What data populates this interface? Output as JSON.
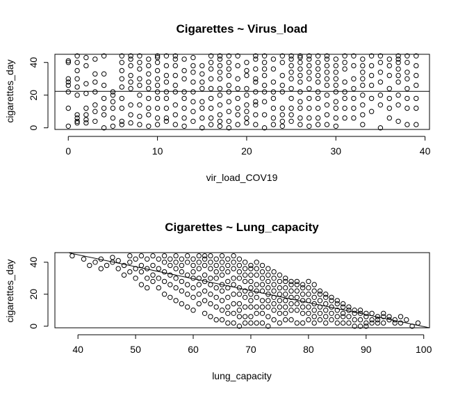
{
  "chart_data": [
    {
      "type": "scatter",
      "title": "Cigarettes ~ Virus_load",
      "xlabel": "vir_load_COV19",
      "ylabel": "cigarettes_day",
      "xlim": [
        -1.5,
        40.5
      ],
      "ylim": [
        -1,
        45
      ],
      "xticks": [
        0,
        10,
        20,
        30,
        40
      ],
      "yticks": [
        0,
        20,
        40
      ],
      "grid": false,
      "legend": "none",
      "fit_line": {
        "x1": -1.5,
        "y1": 22.3,
        "x2": 40.5,
        "y2": 22.3
      },
      "x": [
        0,
        0,
        0,
        0,
        0,
        0,
        0,
        0,
        1,
        1,
        1,
        1,
        1,
        1,
        1,
        1,
        1,
        1,
        2,
        2,
        2,
        2,
        2,
        2,
        2,
        2,
        3,
        3,
        3,
        3,
        3,
        3,
        3,
        4,
        4,
        4,
        4,
        4,
        4,
        4,
        5,
        5,
        5,
        5,
        5,
        5,
        6,
        6,
        6,
        6,
        6,
        6,
        6,
        6,
        6,
        7,
        7,
        7,
        7,
        7,
        7,
        7,
        7,
        7,
        8,
        8,
        8,
        8,
        8,
        8,
        8,
        8,
        8,
        9,
        9,
        9,
        9,
        9,
        9,
        9,
        9,
        9,
        10,
        10,
        10,
        10,
        10,
        10,
        10,
        10,
        10,
        10,
        10,
        11,
        11,
        11,
        11,
        11,
        11,
        11,
        11,
        11,
        12,
        12,
        12,
        12,
        12,
        12,
        12,
        12,
        12,
        13,
        13,
        13,
        13,
        13,
        13,
        13,
        13,
        14,
        14,
        14,
        14,
        14,
        14,
        14,
        14,
        15,
        15,
        15,
        15,
        15,
        15,
        15,
        15,
        16,
        16,
        16,
        16,
        16,
        16,
        16,
        16,
        16,
        17,
        17,
        17,
        17,
        17,
        17,
        17,
        17,
        17,
        17,
        17,
        18,
        18,
        18,
        18,
        18,
        18,
        18,
        18,
        18,
        18,
        19,
        19,
        19,
        19,
        19,
        19,
        19,
        19,
        20,
        20,
        20,
        20,
        20,
        20,
        20,
        20,
        20,
        21,
        21,
        21,
        21,
        21,
        21,
        21,
        21,
        21,
        21,
        22,
        22,
        22,
        22,
        22,
        22,
        22,
        22,
        22,
        23,
        23,
        23,
        23,
        23,
        23,
        23,
        23,
        24,
        24,
        24,
        24,
        24,
        24,
        24,
        24,
        24,
        25,
        25,
        25,
        25,
        25,
        25,
        25,
        25,
        25,
        25,
        26,
        26,
        26,
        26,
        26,
        26,
        26,
        26,
        26,
        26,
        26,
        27,
        27,
        27,
        27,
        27,
        27,
        27,
        27,
        27,
        27,
        28,
        28,
        28,
        28,
        28,
        28,
        28,
        28,
        28,
        28,
        29,
        29,
        29,
        29,
        29,
        29,
        29,
        29,
        29,
        29,
        30,
        30,
        30,
        30,
        30,
        30,
        30,
        30,
        30,
        30,
        31,
        31,
        31,
        31,
        31,
        31,
        31,
        31,
        32,
        32,
        32,
        32,
        32,
        32,
        32,
        33,
        33,
        33,
        33,
        33,
        33,
        33,
        33,
        33,
        34,
        34,
        34,
        34,
        34,
        34,
        35,
        35,
        35,
        35,
        35,
        35,
        35,
        36,
        36,
        36,
        36,
        36,
        36,
        36,
        37,
        37,
        37,
        37,
        37,
        37,
        37,
        37,
        37,
        38,
        38,
        38,
        38,
        38,
        38,
        38,
        38,
        39,
        39,
        39,
        39,
        39,
        39,
        39
      ],
      "y": [
        41,
        40,
        30,
        28,
        26,
        22,
        12,
        1,
        44,
        40,
        35,
        30,
        25,
        20,
        8,
        6,
        4,
        3,
        43,
        38,
        27,
        21,
        12,
        8,
        5,
        3,
        42,
        33,
        28,
        22,
        14,
        10,
        4,
        44,
        33,
        26,
        18,
        12,
        8,
        0,
        22,
        20,
        16,
        12,
        6,
        1,
        44,
        40,
        35,
        30,
        25,
        18,
        12,
        4,
        2,
        44,
        42,
        38,
        32,
        28,
        24,
        14,
        8,
        3,
        44,
        40,
        36,
        30,
        26,
        20,
        14,
        7,
        2,
        42,
        38,
        33,
        28,
        24,
        18,
        12,
        8,
        1,
        44,
        43,
        40,
        35,
        30,
        26,
        22,
        18,
        12,
        6,
        2,
        44,
        38,
        32,
        28,
        22,
        18,
        12,
        6,
        4,
        44,
        42,
        38,
        32,
        26,
        22,
        14,
        8,
        2,
        42,
        35,
        30,
        22,
        18,
        12,
        6,
        1,
        43,
        38,
        34,
        28,
        22,
        16,
        10,
        4,
        38,
        33,
        28,
        24,
        16,
        12,
        6,
        0,
        44,
        40,
        36,
        30,
        24,
        18,
        12,
        6,
        2,
        44,
        42,
        38,
        34,
        30,
        24,
        20,
        14,
        8,
        4,
        1,
        44,
        40,
        36,
        32,
        26,
        22,
        16,
        10,
        4,
        0,
        44,
        38,
        30,
        24,
        18,
        12,
        8,
        2,
        40,
        35,
        32,
        24,
        20,
        14,
        10,
        6,
        3,
        44,
        42,
        36,
        30,
        28,
        22,
        16,
        14,
        8,
        2,
        44,
        40,
        36,
        32,
        26,
        22,
        16,
        8,
        0,
        42,
        36,
        28,
        22,
        18,
        12,
        6,
        2,
        44,
        40,
        32,
        26,
        22,
        12,
        8,
        4,
        1,
        44,
        42,
        38,
        34,
        30,
        24,
        18,
        12,
        8,
        4,
        44,
        43,
        40,
        36,
        32,
        28,
        22,
        16,
        12,
        6,
        2,
        44,
        42,
        38,
        34,
        30,
        24,
        18,
        12,
        6,
        1,
        44,
        40,
        36,
        32,
        28,
        22,
        18,
        12,
        6,
        2,
        44,
        42,
        38,
        34,
        30,
        26,
        20,
        14,
        8,
        2,
        42,
        38,
        34,
        30,
        26,
        22,
        16,
        12,
        6,
        1,
        44,
        40,
        36,
        28,
        22,
        18,
        12,
        6,
        44,
        38,
        30,
        24,
        18,
        12,
        6,
        42,
        38,
        34,
        30,
        26,
        20,
        14,
        8,
        2,
        44,
        38,
        32,
        26,
        18,
        10,
        44,
        40,
        34,
        28,
        20,
        14,
        0,
        42,
        38,
        32,
        24,
        18,
        12,
        6,
        44,
        42,
        40,
        36,
        32,
        28,
        20,
        14,
        4,
        44,
        40,
        34,
        30,
        24,
        18,
        12,
        2,
        44,
        38,
        32,
        26,
        18,
        12,
        2
      ]
    },
    {
      "type": "scatter",
      "title": "Cigarettes ~ Lung_capacity",
      "xlabel": "lung_capacity",
      "ylabel": "cigarettes_day",
      "xlim": [
        36,
        101
      ],
      "ylim": [
        -1,
        46
      ],
      "xticks": [
        40,
        50,
        60,
        70,
        80,
        90,
        100
      ],
      "yticks": [
        0,
        20,
        40
      ],
      "grid": false,
      "legend": "none",
      "fit_line": {
        "x1": 38.5,
        "y1": 45.8,
        "x2": 101,
        "y2": -1
      },
      "x": [
        39,
        41,
        42,
        43,
        44,
        44,
        45,
        46,
        46,
        47,
        47,
        48,
        48,
        49,
        49,
        49,
        50,
        50,
        50,
        51,
        51,
        51,
        51,
        52,
        52,
        52,
        52,
        53,
        53,
        53,
        53,
        54,
        54,
        54,
        54,
        55,
        55,
        55,
        55,
        55,
        56,
        56,
        56,
        56,
        56,
        57,
        57,
        57,
        57,
        57,
        57,
        58,
        58,
        58,
        58,
        58,
        58,
        59,
        59,
        59,
        59,
        59,
        59,
        60,
        60,
        60,
        60,
        60,
        60,
        60,
        61,
        61,
        61,
        61,
        61,
        61,
        61,
        62,
        62,
        62,
        62,
        62,
        62,
        62,
        62,
        63,
        63,
        63,
        63,
        63,
        63,
        63,
        63,
        64,
        64,
        64,
        64,
        64,
        64,
        64,
        64,
        65,
        65,
        65,
        65,
        65,
        65,
        65,
        65,
        65,
        66,
        66,
        66,
        66,
        66,
        66,
        66,
        66,
        66,
        67,
        67,
        67,
        67,
        67,
        67,
        67,
        67,
        67,
        68,
        68,
        68,
        68,
        68,
        68,
        68,
        68,
        68,
        68,
        69,
        69,
        69,
        69,
        69,
        69,
        69,
        69,
        69,
        70,
        70,
        70,
        70,
        70,
        70,
        70,
        70,
        70,
        70,
        71,
        71,
        71,
        71,
        71,
        71,
        71,
        71,
        71,
        72,
        72,
        72,
        72,
        72,
        72,
        72,
        72,
        72,
        73,
        73,
        73,
        73,
        73,
        73,
        73,
        73,
        73,
        74,
        74,
        74,
        74,
        74,
        74,
        74,
        74,
        75,
        75,
        75,
        75,
        75,
        75,
        75,
        75,
        76,
        76,
        76,
        76,
        76,
        76,
        76,
        76,
        77,
        77,
        77,
        77,
        77,
        77,
        77,
        78,
        78,
        78,
        78,
        78,
        78,
        78,
        79,
        79,
        79,
        79,
        79,
        79,
        79,
        80,
        80,
        80,
        80,
        80,
        80,
        80,
        81,
        81,
        81,
        81,
        81,
        81,
        81,
        82,
        82,
        82,
        82,
        82,
        82,
        83,
        83,
        83,
        83,
        83,
        83,
        84,
        84,
        84,
        84,
        84,
        85,
        85,
        85,
        85,
        85,
        86,
        86,
        86,
        86,
        86,
        87,
        87,
        87,
        87,
        88,
        88,
        88,
        88,
        89,
        89,
        89,
        89,
        90,
        90,
        90,
        90,
        91,
        91,
        91,
        92,
        92,
        92,
        93,
        93,
        93,
        94,
        94,
        95,
        95,
        96,
        96,
        97,
        98,
        99
      ],
      "y": [
        44,
        42,
        38,
        40,
        36,
        42,
        38,
        43,
        40,
        36,
        41,
        38,
        32,
        44,
        40,
        34,
        42,
        36,
        30,
        44,
        38,
        34,
        26,
        42,
        36,
        30,
        24,
        44,
        38,
        32,
        28,
        42,
        36,
        30,
        24,
        44,
        40,
        34,
        28,
        20,
        42,
        38,
        32,
        26,
        18,
        44,
        40,
        36,
        30,
        24,
        16,
        42,
        38,
        34,
        28,
        22,
        14,
        44,
        40,
        32,
        26,
        20,
        12,
        42,
        38,
        34,
        30,
        24,
        18,
        10,
        44,
        40,
        36,
        30,
        26,
        20,
        14,
        44,
        42,
        38,
        32,
        28,
        22,
        16,
        8,
        44,
        40,
        36,
        30,
        26,
        20,
        14,
        6,
        42,
        38,
        34,
        30,
        24,
        18,
        12,
        4,
        44,
        40,
        36,
        32,
        26,
        22,
        16,
        10,
        4,
        42,
        38,
        34,
        28,
        24,
        18,
        12,
        8,
        2,
        44,
        40,
        36,
        30,
        26,
        20,
        14,
        8,
        2,
        42,
        38,
        34,
        30,
        24,
        20,
        14,
        10,
        6,
        0,
        40,
        36,
        32,
        28,
        22,
        18,
        12,
        6,
        2,
        38,
        36,
        32,
        28,
        24,
        20,
        16,
        12,
        6,
        2,
        40,
        36,
        32,
        26,
        22,
        18,
        12,
        8,
        2,
        38,
        34,
        30,
        26,
        22,
        16,
        12,
        8,
        2,
        36,
        32,
        28,
        24,
        20,
        16,
        12,
        6,
        0,
        34,
        30,
        26,
        22,
        18,
        14,
        10,
        4,
        32,
        28,
        24,
        20,
        16,
        12,
        8,
        2,
        30,
        28,
        24,
        20,
        16,
        12,
        8,
        4,
        28,
        26,
        22,
        18,
        14,
        10,
        4,
        28,
        26,
        22,
        18,
        14,
        10,
        2,
        26,
        24,
        20,
        16,
        12,
        8,
        2,
        28,
        24,
        20,
        16,
        12,
        8,
        4,
        26,
        22,
        18,
        14,
        10,
        6,
        2,
        22,
        20,
        16,
        12,
        8,
        4,
        20,
        18,
        14,
        10,
        6,
        2,
        18,
        16,
        12,
        8,
        4,
        16,
        14,
        10,
        6,
        2,
        14,
        12,
        8,
        6,
        2,
        12,
        10,
        6,
        2,
        10,
        8,
        4,
        0,
        10,
        8,
        4,
        0,
        8,
        6,
        2,
        0,
        8,
        4,
        2,
        6,
        4,
        2,
        8,
        6,
        2,
        6,
        4,
        4,
        2,
        6,
        2,
        4,
        0,
        2
      ]
    }
  ]
}
